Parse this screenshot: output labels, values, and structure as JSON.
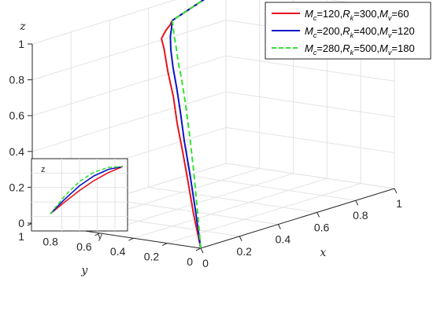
{
  "chart_data": [
    {
      "type": "line",
      "projection": "3d",
      "title": "",
      "xlabel": "x",
      "ylabel": "y",
      "zlabel": "z",
      "xlim": [
        0,
        1
      ],
      "ylim": [
        0,
        1
      ],
      "zlim": [
        0,
        1
      ],
      "xticks": [
        "0",
        "0.2",
        "0.4",
        "0.6",
        "0.8",
        "1"
      ],
      "yticks": [
        "0",
        "0.2",
        "0.4",
        "0.6",
        "0.8",
        "1"
      ],
      "zticks": [
        "0",
        "0.2",
        "0.4",
        "0.6",
        "0.8",
        "1"
      ],
      "grid": true,
      "legend_position": "top-right",
      "series": [
        {
          "name": "M_c=120,R_k=300,M_v=60",
          "legend": [
            [
              "M",
              "c",
              "=120,"
            ],
            [
              "R",
              "k",
              "=300,"
            ],
            [
              "M",
              "v",
              "=60"
            ]
          ],
          "color": "#e8141c",
          "dash": "solid",
          "points": [
            [
              0,
              0,
              0
            ],
            [
              0.05,
              0.1,
              0.16
            ],
            [
              0.1,
              0.19,
              0.31
            ],
            [
              0.15,
              0.28,
              0.45
            ],
            [
              0.2,
              0.37,
              0.58
            ],
            [
              0.25,
              0.45,
              0.7
            ],
            [
              0.3,
              0.54,
              0.81
            ],
            [
              0.35,
              0.62,
              0.91
            ],
            [
              0.38,
              0.67,
              0.95
            ],
            [
              0.42,
              0.69,
              0.98
            ],
            [
              0.46,
              0.71,
              0.995
            ],
            [
              0.5,
              0.745,
              1
            ],
            [
              0.6,
              0.795,
              1
            ],
            [
              0.7,
              0.845,
              1
            ],
            [
              0.8,
              0.895,
              1
            ],
            [
              0.9,
              0.945,
              1
            ],
            [
              1,
              1,
              1
            ]
          ]
        },
        {
          "name": "M_c=200,R_k=400,M_v=120",
          "legend": [
            [
              "M",
              "c",
              "=200,"
            ],
            [
              "R",
              "k",
              "=400,"
            ],
            [
              "M",
              "v",
              "=120"
            ]
          ],
          "color": "#0a14c8",
          "dash": "solid",
          "points": [
            [
              0,
              0,
              0
            ],
            [
              0.05,
              0.09,
              0.19
            ],
            [
              0.1,
              0.18,
              0.36
            ],
            [
              0.15,
              0.27,
              0.51
            ],
            [
              0.2,
              0.35,
              0.64
            ],
            [
              0.25,
              0.43,
              0.75
            ],
            [
              0.3,
              0.51,
              0.84
            ],
            [
              0.35,
              0.58,
              0.91
            ],
            [
              0.4,
              0.64,
              0.96
            ],
            [
              0.45,
              0.69,
              0.985
            ],
            [
              0.5,
              0.745,
              1
            ],
            [
              0.6,
              0.795,
              1
            ],
            [
              0.7,
              0.845,
              1
            ],
            [
              0.8,
              0.895,
              1
            ],
            [
              0.9,
              0.945,
              1
            ],
            [
              1,
              1,
              1
            ]
          ]
        },
        {
          "name": "M_c=280,R_k=500,M_v=180",
          "legend": [
            [
              "M",
              "c",
              "=280,"
            ],
            [
              "R",
              "k",
              "=500,"
            ],
            [
              "M",
              "v",
              "=180"
            ]
          ],
          "color": "#33e133",
          "dash": "dashed",
          "points": [
            [
              0,
              0,
              0
            ],
            [
              0.05,
              0.08,
              0.21
            ],
            [
              0.1,
              0.16,
              0.4
            ],
            [
              0.15,
              0.24,
              0.56
            ],
            [
              0.2,
              0.32,
              0.69
            ],
            [
              0.25,
              0.4,
              0.8
            ],
            [
              0.3,
              0.48,
              0.88
            ],
            [
              0.35,
              0.55,
              0.94
            ],
            [
              0.4,
              0.62,
              0.975
            ],
            [
              0.45,
              0.68,
              0.992
            ],
            [
              0.5,
              0.745,
              1
            ],
            [
              0.6,
              0.795,
              1
            ],
            [
              0.7,
              0.845,
              1
            ],
            [
              0.8,
              0.895,
              1
            ],
            [
              0.9,
              0.945,
              1
            ],
            [
              1,
              1,
              1
            ]
          ]
        }
      ]
    },
    {
      "type": "line",
      "role": "inset",
      "xlabel": "y",
      "ylabel": "z",
      "grid": true,
      "series": [
        {
          "color": "#e8141c",
          "dash": "solid",
          "x": [
            0,
            0.2,
            0.4,
            0.6,
            0.8,
            1
          ],
          "y": [
            0,
            0.25,
            0.49,
            0.7,
            0.87,
            1
          ]
        },
        {
          "color": "#0a14c8",
          "dash": "solid",
          "x": [
            0,
            0.2,
            0.4,
            0.6,
            0.8,
            1
          ],
          "y": [
            0,
            0.31,
            0.59,
            0.8,
            0.94,
            1
          ]
        },
        {
          "color": "#33e133",
          "dash": "dashed",
          "x": [
            0,
            0.2,
            0.4,
            0.6,
            0.8,
            1
          ],
          "y": [
            0,
            0.38,
            0.68,
            0.88,
            0.98,
            1
          ]
        }
      ]
    }
  ]
}
